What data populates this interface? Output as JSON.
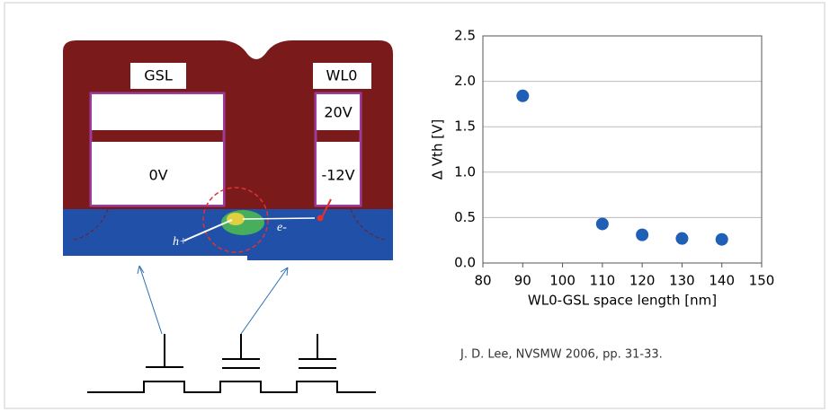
{
  "diagram": {
    "gsl": "GSL",
    "wl0": "WL0",
    "v_top": "20V",
    "v_gsl": "0V",
    "v_bottom": "-12V",
    "hole": "h+",
    "electron": "e-"
  },
  "chart_data": {
    "type": "scatter",
    "x": [
      90,
      110,
      120,
      130,
      140
    ],
    "series": [
      {
        "color": "#1f5fb5",
        "values": [
          1.84,
          0.43,
          0.31,
          0.27,
          0.26
        ]
      }
    ],
    "xlim": [
      80,
      150
    ],
    "xticks": [
      80,
      90,
      100,
      110,
      120,
      130,
      140,
      150
    ],
    "ylim": [
      0,
      2.5
    ],
    "yticks": [
      {
        "value": 0,
        "label": "0.0"
      },
      0.5,
      {
        "value": 1,
        "label": "1.0"
      },
      1.5,
      {
        "value": 2,
        "label": "2.0"
      },
      2.5
    ],
    "xlabel": "WL0-GSL space length [nm]",
    "ylabel": "Δ Vth [V]",
    "grid": true
  },
  "citation": "J. D. Lee, NVSMW 2006, pp. 31-33."
}
